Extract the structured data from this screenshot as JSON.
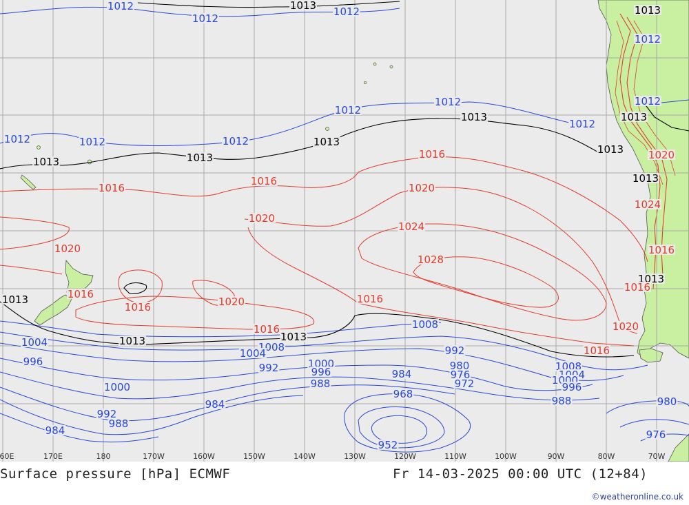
{
  "title": "Surface pressure [hPa] ECMWF",
  "valid_time": "Fr 14-03-2025 00:00 UTC (12+84)",
  "credit": "©weatheronline.co.uk",
  "colors": {
    "ocean": "#ebebeb",
    "land": "#c8f0a0",
    "grid": "#a8a8a8",
    "low_isobar": "#2848d8",
    "std_isobar": "#000000",
    "high_isobar": "#e23c2c"
  },
  "lon_ticks": [
    "60E",
    "170E",
    "180",
    "170W",
    "160W",
    "150W",
    "140W",
    "130W",
    "120W",
    "110W",
    "100W",
    "90W",
    "80W",
    "70W"
  ],
  "isobar_labels": [
    {
      "text": "1012",
      "cat": "low"
    },
    {
      "text": "1013",
      "cat": "std"
    },
    {
      "text": "1012",
      "cat": "low"
    },
    {
      "text": "1012",
      "cat": "low"
    },
    {
      "text": "1013",
      "cat": "std"
    },
    {
      "text": "1012",
      "cat": "low"
    },
    {
      "text": "1012",
      "cat": "low"
    },
    {
      "text": "1012",
      "cat": "low"
    },
    {
      "text": "1012",
      "cat": "low"
    },
    {
      "text": "1012",
      "cat": "low"
    },
    {
      "text": "1012",
      "cat": "low"
    },
    {
      "text": "1012",
      "cat": "low"
    },
    {
      "text": "1012",
      "cat": "low"
    },
    {
      "text": "1013",
      "cat": "std"
    },
    {
      "text": "1013",
      "cat": "std"
    },
    {
      "text": "1013",
      "cat": "std"
    },
    {
      "text": "1013",
      "cat": "std"
    },
    {
      "text": "1013",
      "cat": "std"
    },
    {
      "text": "1013",
      "cat": "std"
    },
    {
      "text": "1013",
      "cat": "std"
    },
    {
      "text": "1013",
      "cat": "std"
    },
    {
      "text": "1013",
      "cat": "std"
    },
    {
      "text": "1013",
      "cat": "std"
    },
    {
      "text": "1013",
      "cat": "std"
    },
    {
      "text": "1016",
      "cat": "high"
    },
    {
      "text": "1016",
      "cat": "high"
    },
    {
      "text": "1016",
      "cat": "high"
    },
    {
      "text": "1016",
      "cat": "high"
    },
    {
      "text": "1016",
      "cat": "high"
    },
    {
      "text": "1016",
      "cat": "high"
    },
    {
      "text": "1016",
      "cat": "high"
    },
    {
      "text": "1016",
      "cat": "high"
    },
    {
      "text": "1016",
      "cat": "high"
    },
    {
      "text": "1016",
      "cat": "high"
    },
    {
      "text": "1020",
      "cat": "high"
    },
    {
      "text": "1020",
      "cat": "high"
    },
    {
      "text": "1020",
      "cat": "high"
    },
    {
      "text": "1020",
      "cat": "high"
    },
    {
      "text": "1020",
      "cat": "high"
    },
    {
      "text": "1020",
      "cat": "high"
    },
    {
      "text": "1024",
      "cat": "high"
    },
    {
      "text": "1028",
      "cat": "high"
    },
    {
      "text": "1024",
      "cat": "high"
    },
    {
      "text": "1008",
      "cat": "low"
    },
    {
      "text": "1008",
      "cat": "low"
    },
    {
      "text": "1008",
      "cat": "low"
    },
    {
      "text": "1004",
      "cat": "low"
    },
    {
      "text": "1004",
      "cat": "low"
    },
    {
      "text": "1004",
      "cat": "low"
    },
    {
      "text": "1000",
      "cat": "low"
    },
    {
      "text": "1000",
      "cat": "low"
    },
    {
      "text": "1000",
      "cat": "low"
    },
    {
      "text": "996",
      "cat": "low"
    },
    {
      "text": "996",
      "cat": "low"
    },
    {
      "text": "996",
      "cat": "low"
    },
    {
      "text": "992",
      "cat": "low"
    },
    {
      "text": "992",
      "cat": "low"
    },
    {
      "text": "992",
      "cat": "low"
    },
    {
      "text": "988",
      "cat": "low"
    },
    {
      "text": "988",
      "cat": "low"
    },
    {
      "text": "988",
      "cat": "low"
    },
    {
      "text": "984",
      "cat": "low"
    },
    {
      "text": "984",
      "cat": "low"
    },
    {
      "text": "984",
      "cat": "low"
    },
    {
      "text": "980",
      "cat": "low"
    },
    {
      "text": "980",
      "cat": "low"
    },
    {
      "text": "976",
      "cat": "low"
    },
    {
      "text": "976",
      "cat": "low"
    },
    {
      "text": "972",
      "cat": "low"
    },
    {
      "text": "968",
      "cat": "low"
    },
    {
      "text": "952",
      "cat": "low"
    }
  ]
}
